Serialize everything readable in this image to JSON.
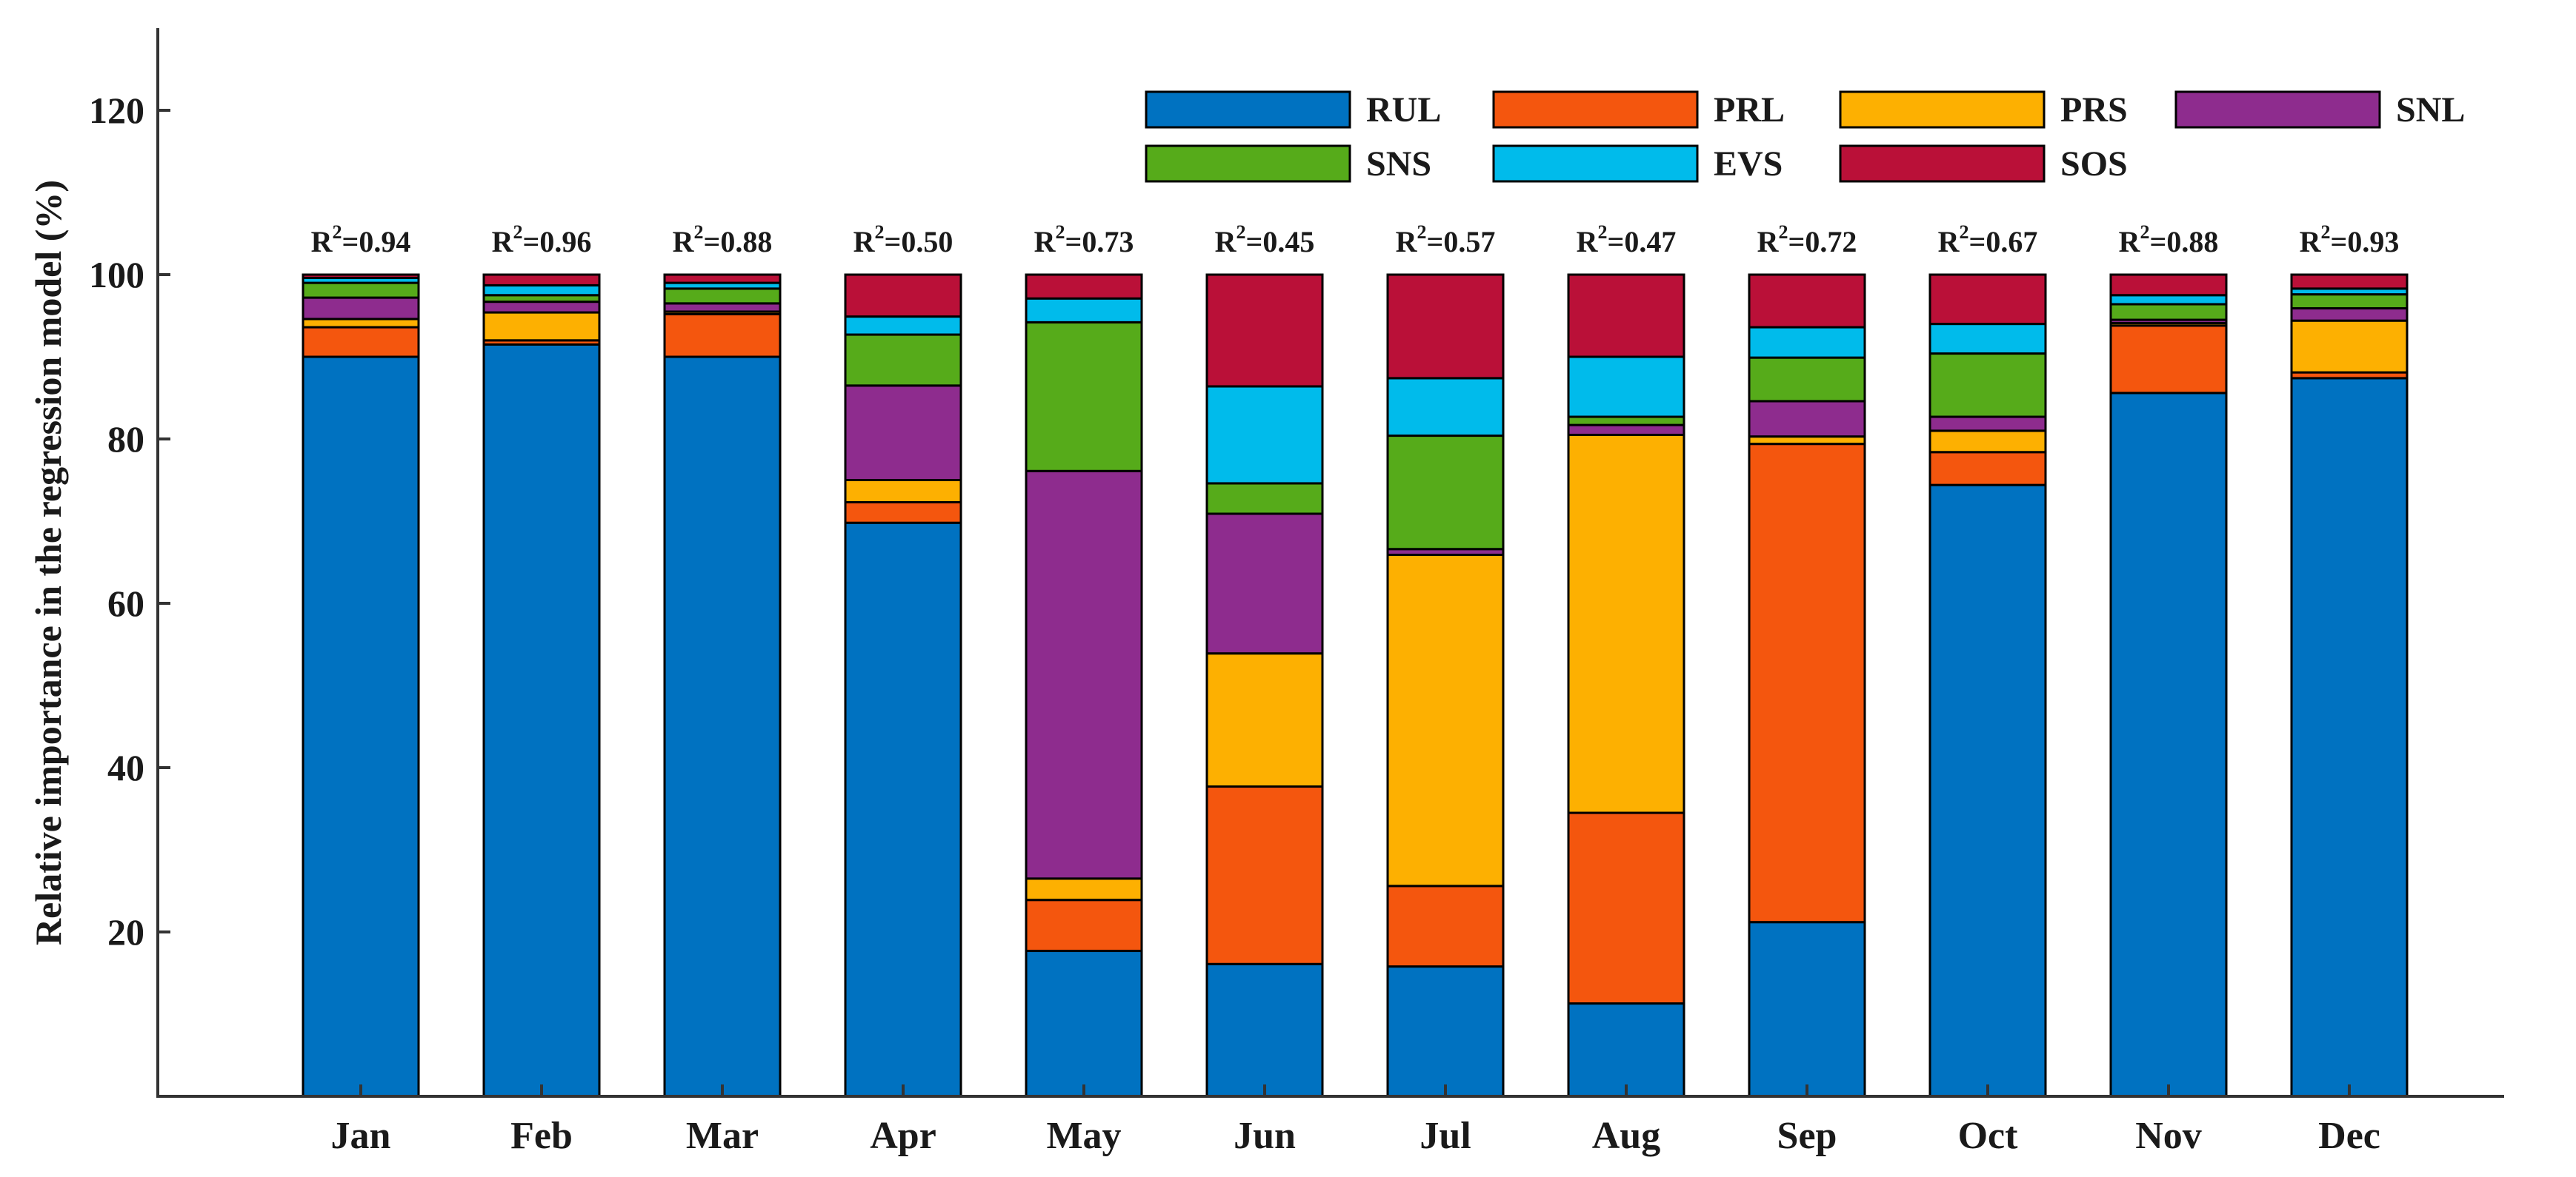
{
  "chart_data": {
    "type": "bar",
    "stacked": true,
    "title": "",
    "xlabel": "",
    "ylabel": "Relative importance in the regression model (%)",
    "ylim": [
      0,
      130
    ],
    "yticks": [
      20,
      40,
      60,
      80,
      100,
      120
    ],
    "legend_position": "top-right",
    "categories": [
      "Jan",
      "Feb",
      "Mar",
      "Apr",
      "May",
      "Jun",
      "Jul",
      "Aug",
      "Sep",
      "Oct",
      "Nov",
      "Dec"
    ],
    "r2_prefix": "R",
    "r2_exponent": "2",
    "r2_values": [
      "=0.94",
      "=0.96",
      "=0.88",
      "=0.50",
      "=0.73",
      "=0.45",
      "=0.57",
      "=0.47",
      "=0.72",
      "=0.67",
      "=0.88",
      "=0.93"
    ],
    "series": [
      {
        "name": "RUL",
        "color": "#0072C1",
        "values": [
          90.0,
          91.5,
          90.0,
          69.8,
          17.7,
          16.1,
          15.8,
          11.3,
          21.2,
          74.4,
          85.6,
          87.4
        ]
      },
      {
        "name": "PRL",
        "color": "#F4560E",
        "values": [
          3.6,
          0.5,
          5.2,
          2.5,
          6.2,
          21.6,
          9.8,
          23.2,
          58.2,
          4.0,
          8.2,
          0.7
        ]
      },
      {
        "name": "PRS",
        "color": "#FDB001",
        "values": [
          1.0,
          3.4,
          0.3,
          2.7,
          2.6,
          16.2,
          40.3,
          46.0,
          0.9,
          2.6,
          0.3,
          6.3
        ]
      },
      {
        "name": "SNL",
        "color": "#8E2C8E",
        "values": [
          2.6,
          1.3,
          1.0,
          11.5,
          49.6,
          17.0,
          0.7,
          1.2,
          4.3,
          1.7,
          0.4,
          1.5
        ]
      },
      {
        "name": "SNS",
        "color": "#56AB1A",
        "values": [
          1.8,
          0.8,
          1.8,
          6.2,
          18.1,
          3.7,
          13.8,
          1.0,
          5.3,
          7.7,
          1.9,
          1.7
        ]
      },
      {
        "name": "EVS",
        "color": "#00BBEB",
        "values": [
          0.6,
          1.2,
          0.7,
          2.2,
          2.9,
          11.8,
          7.0,
          7.3,
          3.7,
          3.6,
          1.1,
          0.7
        ]
      },
      {
        "name": "SOS",
        "color": "#BA1038",
        "values": [
          0.4,
          1.3,
          1.0,
          5.1,
          2.9,
          13.6,
          12.6,
          10.0,
          6.4,
          6.0,
          2.5,
          1.7
        ]
      }
    ]
  }
}
